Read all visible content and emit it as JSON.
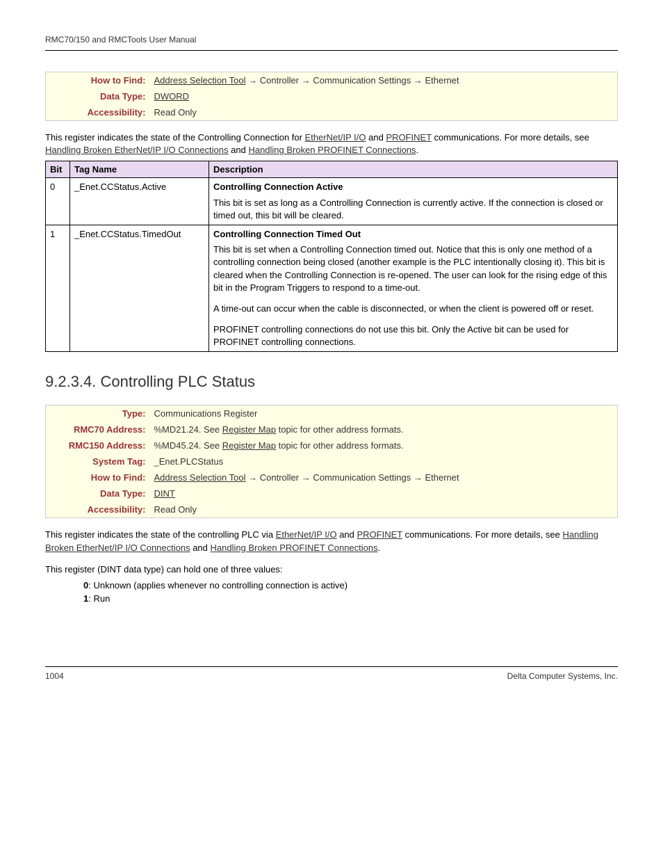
{
  "document": {
    "header": "RMC70/150 and RMCTools User Manual",
    "page_number": "1004",
    "footer_company": "Delta Computer Systems, Inc."
  },
  "info_box_1": {
    "rows": [
      {
        "label": "How to Find:",
        "value_html": "<span class='link'>Address Selection Tool</span> <span class='arrow'>→</span> Controller <span class='arrow'>→</span> Communication Settings <span class='arrow'>→</span> Ethernet"
      },
      {
        "label": "Data Type:",
        "value_html": "<span class='link'>DWORD</span>"
      },
      {
        "label": "Accessibility:",
        "value_html": "Read Only"
      }
    ]
  },
  "description_1": {
    "text_html": "This register indicates the state of the Controlling Connection for <span class='link'>EtherNet/IP I/O</span> and <span class='link'>PROFINET</span> communications. For more details, see <span class='link'>Handling Broken EtherNet/IP I/O Connections</span> and <span class='link'>Handling Broken PROFINET Connections</span>."
  },
  "bit_table": {
    "headers": [
      "Bit",
      "Tag Name",
      "Description"
    ],
    "rows": [
      {
        "bit": "0",
        "tag": "_Enet.CCStatus.Active",
        "title": "Controlling Connection Active",
        "paras": [
          "This bit is set as long as a Controlling Connection is currently active. If the connection is closed or timed out, this bit will be cleared."
        ]
      },
      {
        "bit": "1",
        "tag": "_Enet.CCStatus.TimedOut",
        "title": "Controlling Connection Timed Out",
        "paras": [
          "This bit is set when a Controlling Connection timed out. Notice that this is only one method of a controlling connection being closed (another example is the PLC intentionally closing it). This bit is cleared when the Controlling Connection is re-opened. The user can look for the rising edge of this bit in the Program Triggers to respond to a time-out.",
          "A time-out can occur when the cable is disconnected, or when the client is powered off or reset.",
          "PROFINET controlling connections do not use this bit. Only the Active bit can be used for PROFINET controlling connections."
        ]
      }
    ]
  },
  "section_heading": "9.2.3.4. Controlling PLC Status",
  "info_box_2": {
    "rows": [
      {
        "label": "Type:",
        "value_html": "Communications Register"
      },
      {
        "label": "RMC70 Address:",
        "value_html": "%MD21.24. See <span class='link'>Register Map</span> topic for other address formats."
      },
      {
        "label": "RMC150 Address:",
        "value_html": "%MD45.24. See <span class='link'>Register Map</span> topic for other address formats."
      },
      {
        "label": "System Tag:",
        "value_html": "_Enet.PLCStatus"
      },
      {
        "label": "How to Find:",
        "value_html": "<span class='link'>Address Selection Tool</span> <span class='arrow'>→</span> Controller <span class='arrow'>→</span> Communication Settings <span class='arrow'>→</span> Ethernet"
      },
      {
        "label": "Data Type:",
        "value_html": "<span class='link'>DINT</span>"
      },
      {
        "label": "Accessibility:",
        "value_html": "Read Only"
      }
    ]
  },
  "description_2": {
    "text_html": "This register indicates the state of the controlling PLC via <span class='link'>EtherNet/IP I/O</span> and <span class='link'>PROFINET</span> communications. For more details, see <span class='link'>Handling Broken EtherNet/IP I/O Connections</span> and <span class='link'>Handling Broken PROFINET Connections</span>."
  },
  "description_3": "This register (DINT data type) can hold one of three values:",
  "value_list": [
    {
      "num": "0",
      "text": ": Unknown (applies whenever no controlling connection is active)"
    },
    {
      "num": "1",
      "text": ": Run"
    }
  ],
  "colors": {
    "info_bg": "#ffffe5",
    "label_color": "#993333",
    "bit_header_bg": "#e8d8f0"
  }
}
